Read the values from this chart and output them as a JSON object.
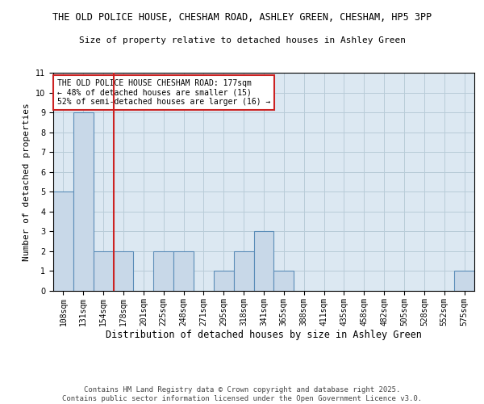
{
  "title_line1": "THE OLD POLICE HOUSE, CHESHAM ROAD, ASHLEY GREEN, CHESHAM, HP5 3PP",
  "title_line2": "Size of property relative to detached houses in Ashley Green",
  "xlabel": "Distribution of detached houses by size in Ashley Green",
  "ylabel": "Number of detached properties",
  "categories": [
    "108sqm",
    "131sqm",
    "154sqm",
    "178sqm",
    "201sqm",
    "225sqm",
    "248sqm",
    "271sqm",
    "295sqm",
    "318sqm",
    "341sqm",
    "365sqm",
    "388sqm",
    "411sqm",
    "435sqm",
    "458sqm",
    "482sqm",
    "505sqm",
    "528sqm",
    "552sqm",
    "575sqm"
  ],
  "values": [
    5,
    9,
    2,
    2,
    0,
    2,
    2,
    0,
    1,
    2,
    3,
    1,
    0,
    0,
    0,
    0,
    0,
    0,
    0,
    0,
    1
  ],
  "bar_color": "#c8d8e8",
  "bar_edge_color": "#5b8db8",
  "grid_color": "#b8ccd8",
  "background_color": "#dce8f2",
  "vline_x": 2.5,
  "vline_color": "#cc2222",
  "annotation_text": "THE OLD POLICE HOUSE CHESHAM ROAD: 177sqm\n← 48% of detached houses are smaller (15)\n52% of semi-detached houses are larger (16) →",
  "annotation_box_color": "#ffffff",
  "annotation_edge_color": "#cc2222",
  "ylim": [
    0,
    11
  ],
  "yticks": [
    0,
    1,
    2,
    3,
    4,
    5,
    6,
    7,
    8,
    9,
    10,
    11
  ],
  "footer": "Contains HM Land Registry data © Crown copyright and database right 2025.\nContains public sector information licensed under the Open Government Licence v3.0.",
  "title_fontsize": 8.5,
  "subtitle_fontsize": 8,
  "axis_label_fontsize": 8.5,
  "tick_fontsize": 7,
  "annotation_fontsize": 7,
  "footer_fontsize": 6.5,
  "ylabel_fontsize": 8
}
